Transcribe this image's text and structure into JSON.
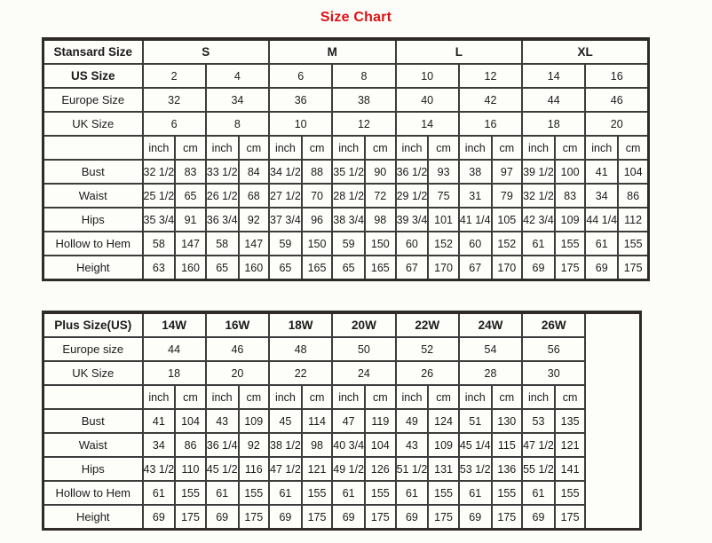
{
  "page": {
    "title": "Size Chart"
  },
  "colors": {
    "title_red": "#dd1111",
    "border_dark": "#3c3c3c",
    "outer_border": "#2f2b26",
    "background": "#fcfcf9",
    "text": "#1b1b1b"
  },
  "standard_table": {
    "corner_label": "Stansard Size",
    "groups": [
      "S",
      "M",
      "L",
      "XL"
    ],
    "size_rows": [
      {
        "label": "US Size",
        "bold": true,
        "values": [
          "2",
          "4",
          "6",
          "8",
          "10",
          "12",
          "14",
          "16"
        ]
      },
      {
        "label": "Europe Size",
        "bold": false,
        "values": [
          "32",
          "34",
          "36",
          "38",
          "40",
          "42",
          "44",
          "46"
        ]
      },
      {
        "label": "UK Size",
        "bold": false,
        "values": [
          "6",
          "8",
          "10",
          "12",
          "14",
          "16",
          "18",
          "20"
        ]
      }
    ],
    "unit_labels": [
      "inch",
      "cm"
    ],
    "unit_pairs": 8,
    "measure_rows": [
      {
        "label": "Bust",
        "values": [
          "32 1/2",
          "83",
          "33 1/2",
          "84",
          "34 1/2",
          "88",
          "35 1/2",
          "90",
          "36 1/2",
          "93",
          "38",
          "97",
          "39 1/2",
          "100",
          "41",
          "104"
        ]
      },
      {
        "label": "Waist",
        "values": [
          "25 1/2",
          "65",
          "26 1/2",
          "68",
          "27 1/2",
          "70",
          "28 1/2",
          "72",
          "29 1/2",
          "75",
          "31",
          "79",
          "32 1/2",
          "83",
          "34",
          "86"
        ]
      },
      {
        "label": "Hips",
        "values": [
          "35 3/4",
          "91",
          "36 3/4",
          "92",
          "37 3/4",
          "96",
          "38 3/4",
          "98",
          "39 3/4",
          "101",
          "41 1/4",
          "105",
          "42 3/4",
          "109",
          "44 1/4",
          "112"
        ]
      },
      {
        "label": "Hollow to Hem",
        "values": [
          "58",
          "147",
          "58",
          "147",
          "59",
          "150",
          "59",
          "150",
          "60",
          "152",
          "60",
          "152",
          "61",
          "155",
          "61",
          "155"
        ]
      },
      {
        "label": "Height",
        "values": [
          "63",
          "160",
          "65",
          "160",
          "65",
          "165",
          "65",
          "165",
          "67",
          "170",
          "67",
          "170",
          "69",
          "175",
          "69",
          "175"
        ]
      }
    ]
  },
  "plus_table": {
    "corner_label": "Plus Size(US)",
    "groups": [
      "14W",
      "16W",
      "18W",
      "20W",
      "22W",
      "24W",
      "26W"
    ],
    "size_rows": [
      {
        "label": "Europe size",
        "bold": false,
        "values": [
          "44",
          "46",
          "48",
          "50",
          "52",
          "54",
          "56"
        ]
      },
      {
        "label": "UK Size",
        "bold": false,
        "values": [
          "18",
          "20",
          "22",
          "24",
          "26",
          "28",
          "30"
        ]
      }
    ],
    "unit_labels": [
      "inch",
      "cm"
    ],
    "unit_pairs": 7,
    "has_trailing_empty_column": true,
    "measure_rows": [
      {
        "label": "Bust",
        "values": [
          "41",
          "104",
          "43",
          "109",
          "45",
          "114",
          "47",
          "119",
          "49",
          "124",
          "51",
          "130",
          "53",
          "135"
        ]
      },
      {
        "label": "Waist",
        "values": [
          "34",
          "86",
          "36 1/4",
          "92",
          "38 1/2",
          "98",
          "40 3/4",
          "104",
          "43",
          "109",
          "45 1/4",
          "115",
          "47 1/2",
          "121"
        ]
      },
      {
        "label": "Hips",
        "values": [
          "43 1/2",
          "110",
          "45 1/2",
          "116",
          "47 1/2",
          "121",
          "49 1/2",
          "126",
          "51 1/2",
          "131",
          "53 1/2",
          "136",
          "55 1/2",
          "141"
        ]
      },
      {
        "label": "Hollow to Hem",
        "values": [
          "61",
          "155",
          "61",
          "155",
          "61",
          "155",
          "61",
          "155",
          "61",
          "155",
          "61",
          "155",
          "61",
          "155"
        ]
      },
      {
        "label": "Height",
        "values": [
          "69",
          "175",
          "69",
          "175",
          "69",
          "175",
          "69",
          "175",
          "69",
          "175",
          "69",
          "175",
          "69",
          "175"
        ]
      }
    ]
  }
}
